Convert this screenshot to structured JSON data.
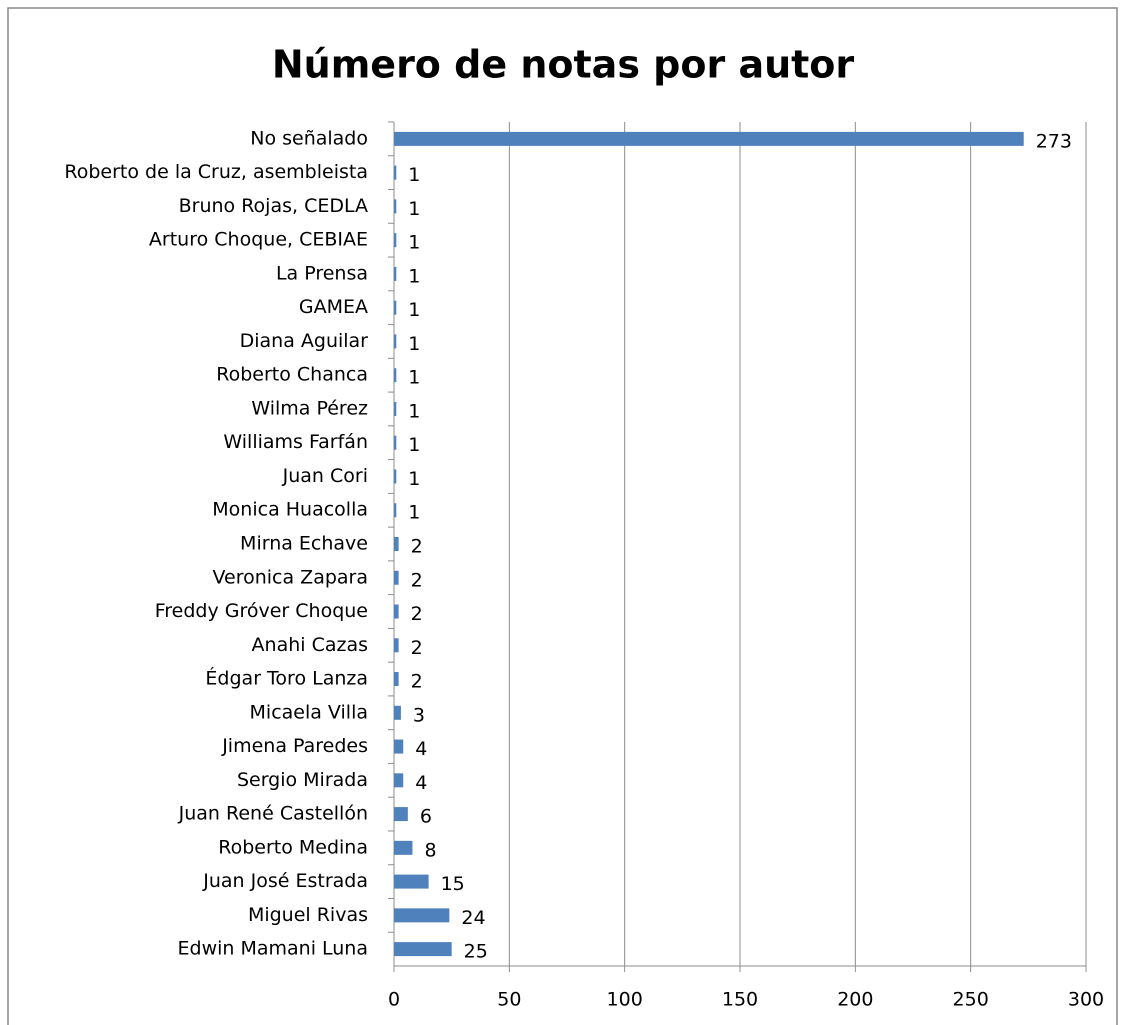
{
  "chart_data": {
    "type": "bar",
    "orientation": "horizontal",
    "title": "Número de notas por autor",
    "categories": [
      "No señalado",
      "Roberto de la Cruz, asembleista",
      "Bruno Rojas, CEDLA",
      "Arturo Choque, CEBIAE",
      "La Prensa",
      "GAMEA",
      "Diana Aguilar",
      "Roberto Chanca",
      "Wilma Pérez",
      "Williams Farfán",
      "Juan Cori",
      "Monica Huacolla",
      "Mirna Echave",
      "Veronica Zapara",
      "Freddy Gróver Choque",
      "Anahi Cazas",
      "Édgar Toro Lanza",
      "Micaela Villa",
      "Jimena Paredes",
      "Sergio Mirada",
      "Juan René Castellón",
      "Roberto Medina",
      "Juan José Estrada",
      "Miguel Rivas",
      "Edwin Mamani Luna"
    ],
    "values": [
      273,
      1,
      1,
      1,
      1,
      1,
      1,
      1,
      1,
      1,
      1,
      1,
      2,
      2,
      2,
      2,
      2,
      3,
      4,
      4,
      6,
      8,
      15,
      24,
      25
    ],
    "color": "#4f81bd",
    "xlim": [
      0,
      300
    ],
    "xticks": [
      0,
      50,
      100,
      150,
      200,
      250,
      300
    ],
    "grid": true
  }
}
